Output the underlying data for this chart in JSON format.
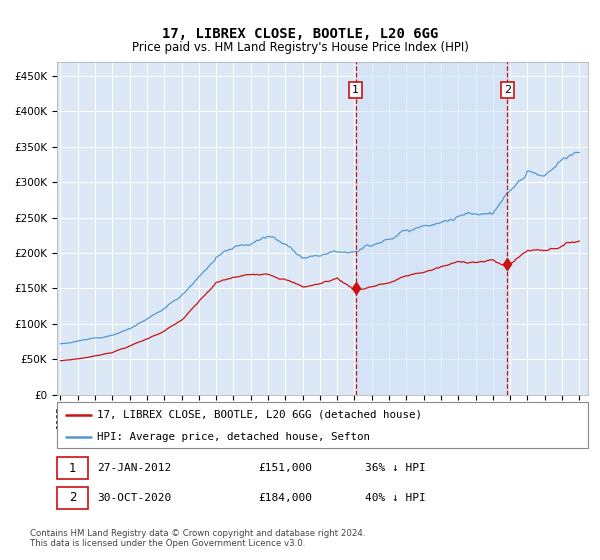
{
  "title": "17, LIBREX CLOSE, BOOTLE, L20 6GG",
  "subtitle": "Price paid vs. HM Land Registry's House Price Index (HPI)",
  "plot_bg": "#dce8f5",
  "hpi_color": "#5599cc",
  "price_color": "#cc1111",
  "shade_color": "#c8dff0",
  "ylim": [
    0,
    470000
  ],
  "yticks": [
    0,
    50000,
    100000,
    150000,
    200000,
    250000,
    300000,
    350000,
    400000,
    450000
  ],
  "ytick_labels": [
    "£0",
    "£50K",
    "£100K",
    "£150K",
    "£200K",
    "£250K",
    "£300K",
    "£350K",
    "£400K",
    "£450K"
  ],
  "marker1_x": 2012.07,
  "marker1_price": 151000,
  "marker2_x": 2020.83,
  "marker2_price": 184000,
  "legend_label_price": "17, LIBREX CLOSE, BOOTLE, L20 6GG (detached house)",
  "legend_label_hpi": "HPI: Average price, detached house, Sefton",
  "footnote": "Contains HM Land Registry data © Crown copyright and database right 2024.\nThis data is licensed under the Open Government Licence v3.0."
}
